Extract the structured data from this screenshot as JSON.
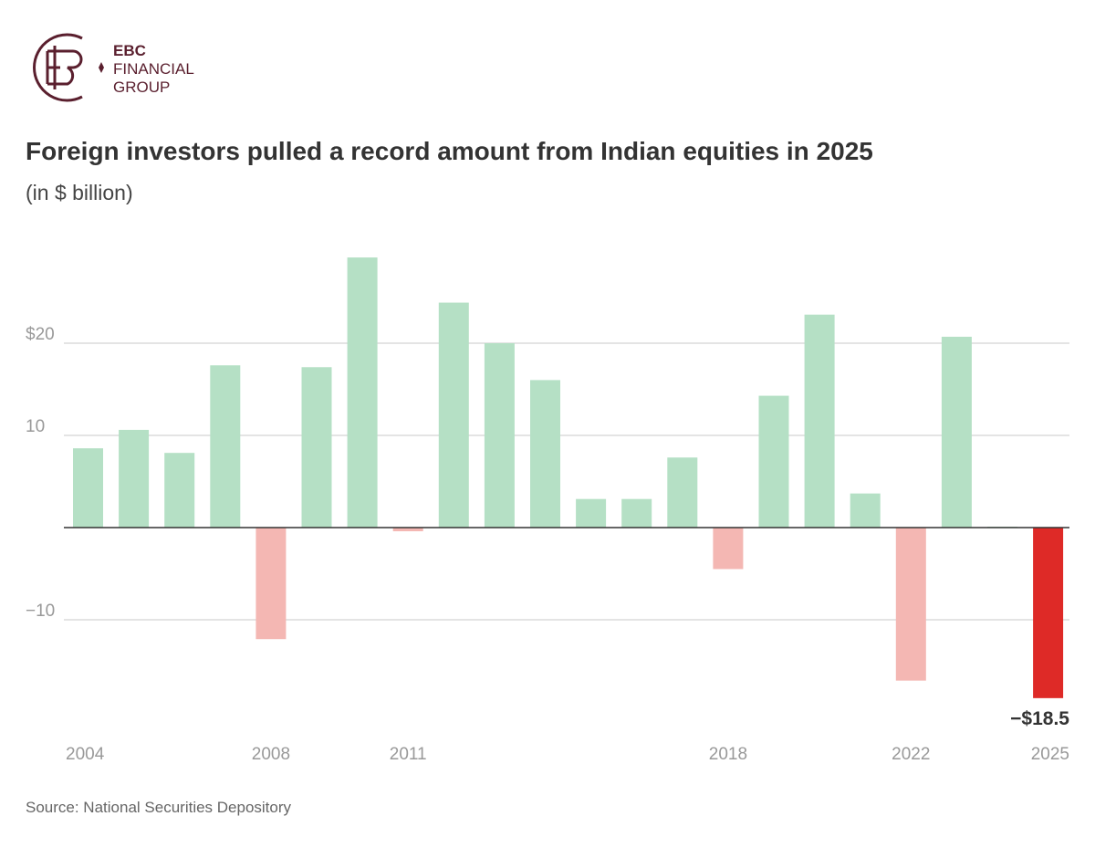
{
  "brand": {
    "line1": "EBC",
    "line2": "FINANCIAL",
    "line3": "GROUP",
    "color": "#5a1f2e"
  },
  "title": "Foreign investors pulled a record amount from Indian equities in 2025",
  "subtitle": "(in $ billion)",
  "source": "Source: National Securities Depository",
  "chart_data": {
    "type": "bar",
    "categories": [
      "2004",
      "2005",
      "2006",
      "2007",
      "2008",
      "2009",
      "2010",
      "2011",
      "2012",
      "2013",
      "2014",
      "2015",
      "2016",
      "2017",
      "2018",
      "2019",
      "2020",
      "2021",
      "2022",
      "2023",
      "2024",
      "2025"
    ],
    "values": [
      8.6,
      10.6,
      8.1,
      17.6,
      -12.1,
      17.4,
      29.3,
      -0.4,
      24.4,
      20.0,
      16.0,
      3.1,
      3.1,
      7.6,
      -4.5,
      14.3,
      23.1,
      3.7,
      -16.6,
      20.7,
      0.1,
      -18.5
    ],
    "x_tick_labels": [
      "2004",
      "2008",
      "2011",
      "2018",
      "2022",
      "2025"
    ],
    "y_ticks": [
      {
        "value": 20,
        "label": "$20"
      },
      {
        "value": 10,
        "label": "10"
      },
      {
        "value": -10,
        "label": "−10"
      }
    ],
    "ylim": [
      -20,
      30
    ],
    "grid": true,
    "annotation": {
      "category": "2025",
      "label": "−$18.5"
    },
    "colors": {
      "positive": "#b5e0c5",
      "negative": "#f4b7b3",
      "highlight": "#de2a27",
      "grid": "#c8c8c8",
      "zero": "#333333"
    }
  }
}
